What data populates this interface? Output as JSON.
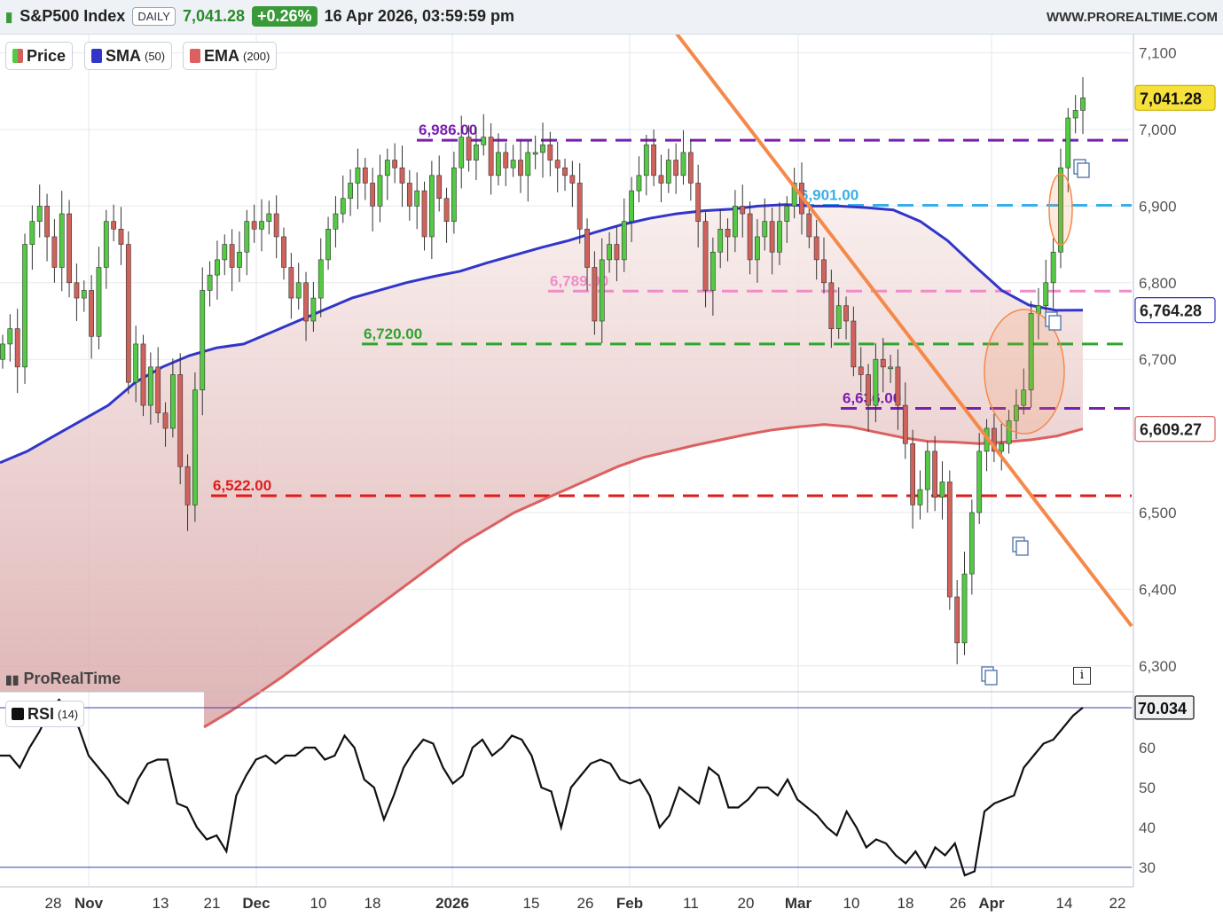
{
  "header": {
    "symbol": "S&P500 Index",
    "period": "DAILY",
    "last": "7,041.28",
    "change": "+0.26%",
    "datetime": "16 Apr 2026, 03:59:59 pm",
    "website": "WWW.PROREALTIME.COM"
  },
  "legend": {
    "price": "Price",
    "sma": "SMA",
    "sma_period": "(50)",
    "ema": "EMA",
    "ema_period": "(200)",
    "rsi": "RSI",
    "rsi_period": "(14)"
  },
  "brand": "ProRealTime",
  "colors": {
    "up": "#53c944",
    "down": "#d0625c",
    "sma": "#3236c8",
    "ema": "#dc6060",
    "trendline": "#f5894a"
  },
  "chart_data": {
    "type": "candlestick",
    "x_tick_labels": [
      "28",
      "Nov",
      "13",
      "21",
      "Dec",
      "10",
      "18",
      "2026",
      "15",
      "26",
      "Feb",
      "11",
      "20",
      "Mar",
      "10",
      "18",
      "26",
      "Apr",
      "14",
      "22"
    ],
    "y_tick_labels": [
      "7,100",
      "7,000",
      "6,900",
      "6,800",
      "6,700",
      "6,500",
      "6,400",
      "6,300"
    ],
    "ylim": [
      6300,
      7100
    ],
    "closes": [
      6720,
      6740,
      6690,
      6850,
      6880,
      6900,
      6860,
      6820,
      6890,
      6800,
      6780,
      6790,
      6730,
      6820,
      6880,
      6870,
      6850,
      6670,
      6720,
      6640,
      6690,
      6630,
      6610,
      6680,
      6560,
      6510,
      6660,
      6790,
      6810,
      6830,
      6850,
      6820,
      6840,
      6880,
      6870,
      6880,
      6890,
      6860,
      6820,
      6780,
      6800,
      6750,
      6780,
      6830,
      6870,
      6890,
      6910,
      6930,
      6950,
      6930,
      6900,
      6940,
      6960,
      6950,
      6930,
      6900,
      6920,
      6860,
      6940,
      6910,
      6880,
      6950,
      6990,
      6960,
      6980,
      6990,
      6940,
      6970,
      6950,
      6960,
      6940,
      6970,
      6970,
      6980,
      6960,
      6950,
      6940,
      6930,
      6870,
      6820,
      6750,
      6830,
      6850,
      6830,
      6880,
      6920,
      6940,
      6980,
      6940,
      6930,
      6960,
      6940,
      6970,
      6930,
      6880,
      6790,
      6840,
      6870,
      6860,
      6900,
      6890,
      6830,
      6860,
      6880,
      6840,
      6880,
      6900,
      6930,
      6890,
      6860,
      6830,
      6800,
      6740,
      6770,
      6750,
      6690,
      6680,
      6640,
      6700,
      6690,
      6690,
      6640,
      6590,
      6510,
      6530,
      6580,
      6520,
      6540,
      6390,
      6330,
      6420,
      6500,
      6580,
      6610,
      6580,
      6590,
      6620,
      6640,
      6660,
      6760,
      6770,
      6800,
      6840,
      6950,
      7015,
      7025,
      7041.28
    ],
    "sma": {
      "name": "SMA",
      "period": 50,
      "value": "6,764.28",
      "values": [
        6565,
        6580,
        6600,
        6620,
        6640,
        6670,
        6690,
        6705,
        6715,
        6720,
        6735,
        6750,
        6765,
        6780,
        6790,
        6800,
        6808,
        6815,
        6826,
        6836,
        6846,
        6855,
        6866,
        6876,
        6884,
        6890,
        6894,
        6896,
        6900,
        6902,
        6900,
        6900,
        6898,
        6895,
        6880,
        6855,
        6822,
        6790,
        6771,
        6764,
        6764.28
      ]
    },
    "ema": {
      "name": "EMA",
      "period": 200,
      "value": "6,609.27",
      "values": [
        6220,
        6240,
        6262,
        6285,
        6310,
        6335,
        6360,
        6385,
        6410,
        6435,
        6460,
        6480,
        6500,
        6515,
        6530,
        6545,
        6560,
        6572,
        6580,
        6588,
        6595,
        6602,
        6608,
        6612,
        6615,
        6612,
        6605,
        6598,
        6593,
        6592,
        6590,
        6592,
        6595,
        6600,
        6609.27
      ]
    },
    "levels": [
      {
        "label": "6,986.00",
        "value": 6986,
        "color": "#7a1fb0"
      },
      {
        "label": "6,901.00",
        "value": 6901,
        "color": "#3aaee8"
      },
      {
        "label": "6,789.00",
        "value": 6789,
        "color": "#f08cc8"
      },
      {
        "label": "6,720.00",
        "value": 6720,
        "color": "#2fa52f"
      },
      {
        "label": "6,636.00",
        "value": 6636,
        "color": "#7a1fb0"
      },
      {
        "label": "6,522.00",
        "value": 6522,
        "color": "#e11b1b"
      }
    ],
    "rsi": {
      "period": 14,
      "value": "70.034",
      "y_tick_labels": [
        "60",
        "50",
        "40",
        "30"
      ],
      "levels": [
        70,
        30
      ],
      "values": [
        58,
        58,
        55,
        60,
        64,
        69,
        72,
        69,
        65,
        58,
        55,
        52,
        48,
        46,
        52,
        56,
        57,
        57,
        46,
        45,
        40,
        37,
        38,
        34,
        48,
        53,
        57,
        58,
        56,
        58,
        58,
        60,
        60,
        57,
        58,
        63,
        60,
        52,
        50,
        42,
        48,
        55,
        59,
        62,
        61,
        55,
        51,
        53,
        60,
        62,
        58,
        60,
        63,
        62,
        58,
        50,
        49,
        40,
        50,
        53,
        56,
        57,
        56,
        52,
        51,
        52,
        48,
        40,
        43,
        50,
        48,
        46,
        55,
        53,
        45,
        45,
        47,
        50,
        50,
        48,
        52,
        47,
        45,
        43,
        40,
        38,
        44,
        40,
        35,
        37,
        36,
        33,
        31,
        34,
        30,
        35,
        33,
        36,
        28,
        29,
        44,
        46,
        47,
        48,
        55,
        58,
        61,
        62,
        65,
        68,
        70.034
      ]
    }
  }
}
